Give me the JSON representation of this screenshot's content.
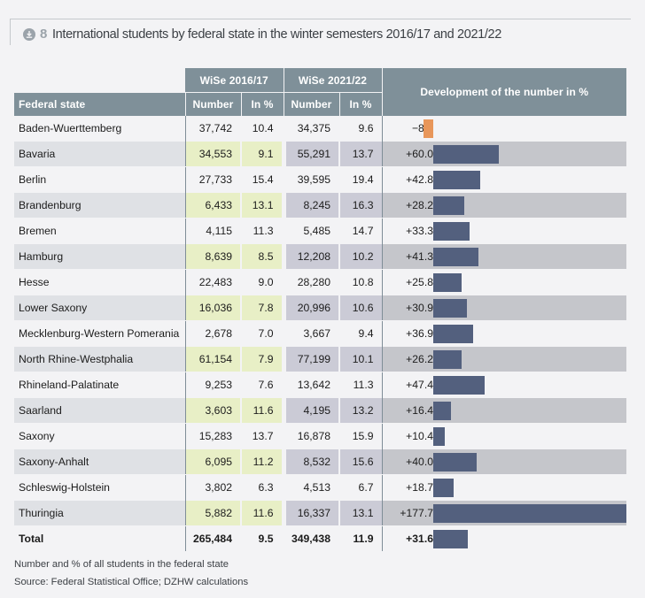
{
  "header": {
    "figure_number": "8",
    "title": "International students by federal state in the winter semesters 2016/17 and 2021/22",
    "icon": "download-icon"
  },
  "table": {
    "group_headers": [
      "WiSe 2016/17",
      "WiSe 2021/22"
    ],
    "state_header": "Federal state",
    "sub_headers": [
      "Number",
      "In %",
      "Number",
      "In %"
    ],
    "development_header": "Development of the number in %"
  },
  "colors": {
    "header_bg": "#7f9099",
    "shade_2016": "#e8efc6",
    "shade_2021": "#cbcbd6",
    "bar_positive": "#53607e",
    "bar_negative": "#e8965a"
  },
  "chart_data": {
    "type": "table",
    "title": "International students by federal state in the winter semesters 2016/17 and 2021/22",
    "columns": [
      "Federal state",
      "WiSe 2016/17 Number",
      "WiSe 2016/17 In %",
      "WiSe 2021/22 Number",
      "WiSe 2021/22 In %",
      "Development of the number in %"
    ],
    "bar_column": "Development of the number in %",
    "bar_range": [
      -8.9,
      177.7
    ],
    "rows": [
      {
        "state": "Baden-Wuerttemberg",
        "n2016": "37,742",
        "p2016": "10.4",
        "n2021": "34,375",
        "p2021": "9.6",
        "dev_label": "−8.9",
        "dev": -8.9
      },
      {
        "state": "Bavaria",
        "n2016": "34,553",
        "p2016": "9.1",
        "n2021": "55,291",
        "p2021": "13.7",
        "dev_label": "+60.0",
        "dev": 60.0
      },
      {
        "state": "Berlin",
        "n2016": "27,733",
        "p2016": "15.4",
        "n2021": "39,595",
        "p2021": "19.4",
        "dev_label": "+42.8",
        "dev": 42.8
      },
      {
        "state": "Brandenburg",
        "n2016": "6,433",
        "p2016": "13.1",
        "n2021": "8,245",
        "p2021": "16.3",
        "dev_label": "+28.2",
        "dev": 28.2
      },
      {
        "state": "Bremen",
        "n2016": "4,115",
        "p2016": "11.3",
        "n2021": "5,485",
        "p2021": "14.7",
        "dev_label": "+33.3",
        "dev": 33.3
      },
      {
        "state": "Hamburg",
        "n2016": "8,639",
        "p2016": "8.5",
        "n2021": "12,208",
        "p2021": "10.2",
        "dev_label": "+41.3",
        "dev": 41.3
      },
      {
        "state": "Hesse",
        "n2016": "22,483",
        "p2016": "9.0",
        "n2021": "28,280",
        "p2021": "10.8",
        "dev_label": "+25.8",
        "dev": 25.8
      },
      {
        "state": "Lower Saxony",
        "n2016": "16,036",
        "p2016": "7.8",
        "n2021": "20,996",
        "p2021": "10.6",
        "dev_label": "+30.9",
        "dev": 30.9
      },
      {
        "state": "Mecklenburg-Western Pomerania",
        "n2016": "2,678",
        "p2016": "7.0",
        "n2021": "3,667",
        "p2021": "9.4",
        "dev_label": "+36.9",
        "dev": 36.9
      },
      {
        "state": "North Rhine-Westphalia",
        "n2016": "61,154",
        "p2016": "7.9",
        "n2021": "77,199",
        "p2021": "10.1",
        "dev_label": "+26.2",
        "dev": 26.2
      },
      {
        "state": "Rhineland-Palatinate",
        "n2016": "9,253",
        "p2016": "7.6",
        "n2021": "13,642",
        "p2021": "11.3",
        "dev_label": "+47.4",
        "dev": 47.4
      },
      {
        "state": "Saarland",
        "n2016": "3,603",
        "p2016": "11.6",
        "n2021": "4,195",
        "p2021": "13.2",
        "dev_label": "+16.4",
        "dev": 16.4
      },
      {
        "state": "Saxony",
        "n2016": "15,283",
        "p2016": "13.7",
        "n2021": "16,878",
        "p2021": "15.9",
        "dev_label": "+10.4",
        "dev": 10.4
      },
      {
        "state": "Saxony-Anhalt",
        "n2016": "6,095",
        "p2016": "11.2",
        "n2021": "8,532",
        "p2021": "15.6",
        "dev_label": "+40.0",
        "dev": 40.0
      },
      {
        "state": "Schleswig-Holstein",
        "n2016": "3,802",
        "p2016": "6.3",
        "n2021": "4,513",
        "p2021": "6.7",
        "dev_label": "+18.7",
        "dev": 18.7
      },
      {
        "state": "Thuringia",
        "n2016": "5,882",
        "p2016": "11.6",
        "n2021": "16,337",
        "p2021": "13.1",
        "dev_label": "+177.7",
        "dev": 177.7
      }
    ],
    "total": {
      "state": "Total",
      "n2016": "265,484",
      "p2016": "9.5",
      "n2021": "349,438",
      "p2021": "11.9",
      "dev_label": "+31.6",
      "dev": 31.6
    }
  },
  "notes": {
    "line1": "Number and % of all students in the federal state",
    "line2": "Source: Federal Statistical Office; DZHW calculations"
  }
}
